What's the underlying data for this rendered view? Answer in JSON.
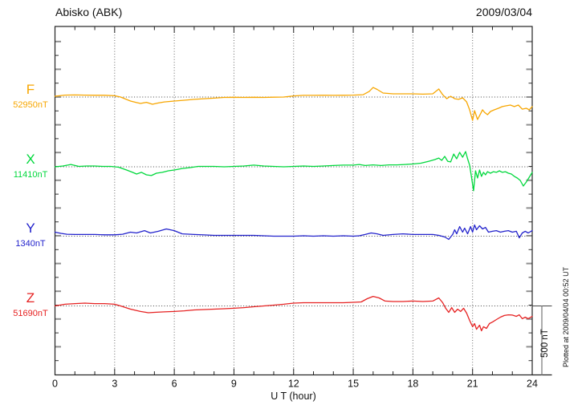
{
  "header": {
    "station": "Abisko (ABK)",
    "date": "2009/03/04"
  },
  "plotted_note": "Plotted at 2009/04/04 00:52 UT",
  "scale_bar": {
    "label": "500 nT",
    "span_nT": 500
  },
  "axis": {
    "xlabel": "U T (hour)"
  },
  "chart_data": {
    "type": "line",
    "title": "Abisko (ABK)",
    "subtitle": "2009/03/04",
    "xlabel": "U T (hour)",
    "x_range": [
      0,
      24
    ],
    "x_major_ticks": [
      "0",
      "3",
      "6",
      "9",
      "12",
      "15",
      "18",
      "21",
      "24"
    ],
    "x_minor_step_hours": 1,
    "y_minor_tick_nT": 100,
    "scale_bar_nT": 500,
    "grid": "dotted vertical lines every 3 h; dotted horizontal line at each component baseline",
    "legend_position": "left-margin labels",
    "series": [
      {
        "name": "F",
        "base_nT": 52950,
        "base_label": "52950nT",
        "unit": "nT",
        "color": "#f7a600",
        "points_hour_offsetnT": [
          [
            0,
            6
          ],
          [
            0.5,
            14
          ],
          [
            1,
            15
          ],
          [
            1.5,
            14
          ],
          [
            2,
            13
          ],
          [
            2.5,
            13
          ],
          [
            3,
            9
          ],
          [
            3.3,
            0
          ],
          [
            3.8,
            -29
          ],
          [
            4.1,
            -40
          ],
          [
            4.3,
            -46
          ],
          [
            4.6,
            -38
          ],
          [
            4.9,
            -52
          ],
          [
            5.2,
            -43
          ],
          [
            5.5,
            -35
          ],
          [
            6,
            -29
          ],
          [
            6.5,
            -23
          ],
          [
            7,
            -17
          ],
          [
            7.5,
            -12
          ],
          [
            8,
            -8
          ],
          [
            8.5,
            -3
          ],
          [
            9,
            -2
          ],
          [
            9.5,
            -3
          ],
          [
            10,
            -2
          ],
          [
            10.5,
            -3
          ],
          [
            11,
            -1
          ],
          [
            11.5,
            0
          ],
          [
            12,
            8
          ],
          [
            12.5,
            12
          ],
          [
            13,
            12
          ],
          [
            13.5,
            13
          ],
          [
            14,
            12
          ],
          [
            14.5,
            13
          ],
          [
            15,
            14
          ],
          [
            15.5,
            17
          ],
          [
            15.8,
            40
          ],
          [
            16,
            69
          ],
          [
            16.2,
            55
          ],
          [
            16.5,
            29
          ],
          [
            17,
            23
          ],
          [
            17.5,
            23
          ],
          [
            18,
            23
          ],
          [
            18.5,
            21
          ],
          [
            19,
            23
          ],
          [
            19.3,
            58
          ],
          [
            19.5,
            17
          ],
          [
            19.7,
            -12
          ],
          [
            19.9,
            6
          ],
          [
            20.1,
            -12
          ],
          [
            20.3,
            -17
          ],
          [
            20.5,
            -6
          ],
          [
            20.7,
            -35
          ],
          [
            20.85,
            -92
          ],
          [
            21,
            -168
          ],
          [
            21.1,
            -98
          ],
          [
            21.25,
            -162
          ],
          [
            21.4,
            -121
          ],
          [
            21.5,
            -92
          ],
          [
            21.6,
            -110
          ],
          [
            21.75,
            -127
          ],
          [
            21.9,
            -104
          ],
          [
            22.1,
            -92
          ],
          [
            22.3,
            -81
          ],
          [
            22.5,
            -69
          ],
          [
            22.7,
            -63
          ],
          [
            22.9,
            -58
          ],
          [
            23.1,
            -69
          ],
          [
            23.3,
            -58
          ],
          [
            23.5,
            -87
          ],
          [
            23.7,
            -81
          ],
          [
            23.85,
            -92
          ],
          [
            24,
            -69
          ]
        ]
      },
      {
        "name": "X",
        "base_nT": 11410,
        "base_label": "11410nT",
        "unit": "nT",
        "color": "#00d83c",
        "points_hour_offsetnT": [
          [
            0,
            0
          ],
          [
            0.4,
            6
          ],
          [
            0.8,
            17
          ],
          [
            1.2,
            3
          ],
          [
            1.6,
            6
          ],
          [
            2,
            6
          ],
          [
            2.4,
            3
          ],
          [
            2.8,
            3
          ],
          [
            3.2,
            -3
          ],
          [
            3.6,
            -23
          ],
          [
            3.9,
            -40
          ],
          [
            4.1,
            -52
          ],
          [
            4.35,
            -40
          ],
          [
            4.6,
            -58
          ],
          [
            4.85,
            -63
          ],
          [
            5.1,
            -46
          ],
          [
            5.4,
            -40
          ],
          [
            5.7,
            -29
          ],
          [
            6,
            -23
          ],
          [
            6.4,
            -12
          ],
          [
            6.8,
            -6
          ],
          [
            7.2,
            3
          ],
          [
            7.6,
            3
          ],
          [
            8,
            3
          ],
          [
            8.5,
            0
          ],
          [
            9,
            3
          ],
          [
            9.5,
            6
          ],
          [
            10,
            12
          ],
          [
            10.5,
            6
          ],
          [
            11,
            3
          ],
          [
            11.5,
            0
          ],
          [
            12,
            3
          ],
          [
            12.5,
            6
          ],
          [
            13,
            3
          ],
          [
            13.5,
            6
          ],
          [
            14,
            9
          ],
          [
            14.5,
            12
          ],
          [
            15,
            12
          ],
          [
            15.3,
            17
          ],
          [
            15.6,
            9
          ],
          [
            16,
            14
          ],
          [
            16.4,
            9
          ],
          [
            16.8,
            14
          ],
          [
            17.2,
            14
          ],
          [
            17.6,
            17
          ],
          [
            18,
            20
          ],
          [
            18.4,
            26
          ],
          [
            18.8,
            40
          ],
          [
            19.1,
            52
          ],
          [
            19.3,
            63
          ],
          [
            19.45,
            46
          ],
          [
            19.6,
            75
          ],
          [
            19.75,
            40
          ],
          [
            19.9,
            35
          ],
          [
            20.05,
            92
          ],
          [
            20.2,
            58
          ],
          [
            20.35,
            104
          ],
          [
            20.5,
            69
          ],
          [
            20.65,
            110
          ],
          [
            20.75,
            58
          ],
          [
            20.85,
            12
          ],
          [
            20.95,
            -75
          ],
          [
            21.05,
            -173
          ],
          [
            21.15,
            -29
          ],
          [
            21.25,
            -81
          ],
          [
            21.35,
            -23
          ],
          [
            21.45,
            -69
          ],
          [
            21.55,
            -40
          ],
          [
            21.65,
            -58
          ],
          [
            21.75,
            -35
          ],
          [
            21.9,
            -46
          ],
          [
            22.05,
            -35
          ],
          [
            22.2,
            -40
          ],
          [
            22.35,
            -29
          ],
          [
            22.5,
            -40
          ],
          [
            22.65,
            -35
          ],
          [
            22.8,
            -46
          ],
          [
            22.95,
            -52
          ],
          [
            23.1,
            -69
          ],
          [
            23.25,
            -81
          ],
          [
            23.4,
            -98
          ],
          [
            23.55,
            -139
          ],
          [
            23.7,
            -110
          ],
          [
            23.85,
            -75
          ],
          [
            24,
            -40
          ]
        ]
      },
      {
        "name": "Y",
        "base_nT": 1340,
        "base_label": "1340nT",
        "unit": "nT",
        "color": "#2222cc",
        "points_hour_offsetnT": [
          [
            0,
            29
          ],
          [
            0.3,
            20
          ],
          [
            0.6,
            14
          ],
          [
            1,
            12
          ],
          [
            1.5,
            12
          ],
          [
            2,
            12
          ],
          [
            2.5,
            10
          ],
          [
            3,
            10
          ],
          [
            3.4,
            14
          ],
          [
            3.8,
            29
          ],
          [
            4.1,
            23
          ],
          [
            4.5,
            40
          ],
          [
            4.8,
            23
          ],
          [
            5.2,
            35
          ],
          [
            5.6,
            52
          ],
          [
            6,
            40
          ],
          [
            6.4,
            17
          ],
          [
            7,
            12
          ],
          [
            7.5,
            9
          ],
          [
            8,
            6
          ],
          [
            8.5,
            6
          ],
          [
            9,
            6
          ],
          [
            9.5,
            6
          ],
          [
            10,
            6
          ],
          [
            10.5,
            3
          ],
          [
            11,
            0
          ],
          [
            11.5,
            0
          ],
          [
            12,
            0
          ],
          [
            12.5,
            3
          ],
          [
            13,
            0
          ],
          [
            13.5,
            3
          ],
          [
            14,
            0
          ],
          [
            14.5,
            3
          ],
          [
            15,
            0
          ],
          [
            15.3,
            3
          ],
          [
            15.6,
            12
          ],
          [
            15.9,
            23
          ],
          [
            16.2,
            17
          ],
          [
            16.5,
            6
          ],
          [
            17,
            12
          ],
          [
            17.5,
            17
          ],
          [
            18,
            12
          ],
          [
            18.5,
            12
          ],
          [
            19,
            12
          ],
          [
            19.3,
            6
          ],
          [
            19.6,
            -6
          ],
          [
            19.8,
            -23
          ],
          [
            20,
            12
          ],
          [
            20.1,
            46
          ],
          [
            20.2,
            17
          ],
          [
            20.35,
            69
          ],
          [
            20.5,
            29
          ],
          [
            20.6,
            58
          ],
          [
            20.75,
            17
          ],
          [
            20.9,
            69
          ],
          [
            21,
            29
          ],
          [
            21.1,
            81
          ],
          [
            21.2,
            46
          ],
          [
            21.35,
            75
          ],
          [
            21.5,
            52
          ],
          [
            21.65,
            63
          ],
          [
            21.8,
            29
          ],
          [
            22,
            35
          ],
          [
            22.2,
            40
          ],
          [
            22.4,
            29
          ],
          [
            22.6,
            35
          ],
          [
            22.8,
            40
          ],
          [
            23,
            29
          ],
          [
            23.2,
            35
          ],
          [
            23.35,
            -12
          ],
          [
            23.5,
            23
          ],
          [
            23.65,
            35
          ],
          [
            23.8,
            23
          ],
          [
            24,
            40
          ]
        ]
      },
      {
        "name": "Z",
        "base_nT": 51690,
        "base_label": "51690nT",
        "unit": "nT",
        "color": "#e62222",
        "points_hour_offsetnT": [
          [
            0,
            0
          ],
          [
            0.5,
            12
          ],
          [
            1,
            17
          ],
          [
            1.5,
            20
          ],
          [
            2,
            17
          ],
          [
            2.5,
            17
          ],
          [
            3,
            12
          ],
          [
            3.3,
            0
          ],
          [
            3.8,
            -23
          ],
          [
            4.3,
            -40
          ],
          [
            4.7,
            -49
          ],
          [
            5,
            -46
          ],
          [
            5.5,
            -43
          ],
          [
            6,
            -40
          ],
          [
            6.5,
            -35
          ],
          [
            7,
            -29
          ],
          [
            7.5,
            -26
          ],
          [
            8,
            -23
          ],
          [
            8.5,
            -20
          ],
          [
            9,
            -17
          ],
          [
            9.5,
            -12
          ],
          [
            10,
            -6
          ],
          [
            10.5,
            0
          ],
          [
            11,
            6
          ],
          [
            11.5,
            12
          ],
          [
            12,
            20
          ],
          [
            12.5,
            23
          ],
          [
            13,
            23
          ],
          [
            13.5,
            23
          ],
          [
            14,
            23
          ],
          [
            14.5,
            23
          ],
          [
            15,
            26
          ],
          [
            15.4,
            29
          ],
          [
            15.7,
            52
          ],
          [
            16,
            69
          ],
          [
            16.3,
            58
          ],
          [
            16.6,
            35
          ],
          [
            17,
            32
          ],
          [
            17.5,
            32
          ],
          [
            18,
            35
          ],
          [
            18.5,
            32
          ],
          [
            19,
            35
          ],
          [
            19.3,
            58
          ],
          [
            19.5,
            23
          ],
          [
            19.65,
            -17
          ],
          [
            19.8,
            -46
          ],
          [
            19.95,
            -12
          ],
          [
            20.1,
            -46
          ],
          [
            20.25,
            -23
          ],
          [
            20.4,
            -40
          ],
          [
            20.55,
            -17
          ],
          [
            20.7,
            -52
          ],
          [
            20.85,
            -104
          ],
          [
            21,
            -150
          ],
          [
            21.1,
            -127
          ],
          [
            21.2,
            -168
          ],
          [
            21.35,
            -139
          ],
          [
            21.45,
            -179
          ],
          [
            21.55,
            -150
          ],
          [
            21.7,
            -162
          ],
          [
            21.85,
            -127
          ],
          [
            22,
            -116
          ],
          [
            22.2,
            -98
          ],
          [
            22.4,
            -81
          ],
          [
            22.6,
            -69
          ],
          [
            22.8,
            -64
          ],
          [
            23,
            -66
          ],
          [
            23.2,
            -75
          ],
          [
            23.35,
            -64
          ],
          [
            23.5,
            -92
          ],
          [
            23.65,
            -81
          ],
          [
            23.8,
            -92
          ],
          [
            24,
            -75
          ]
        ]
      }
    ]
  }
}
